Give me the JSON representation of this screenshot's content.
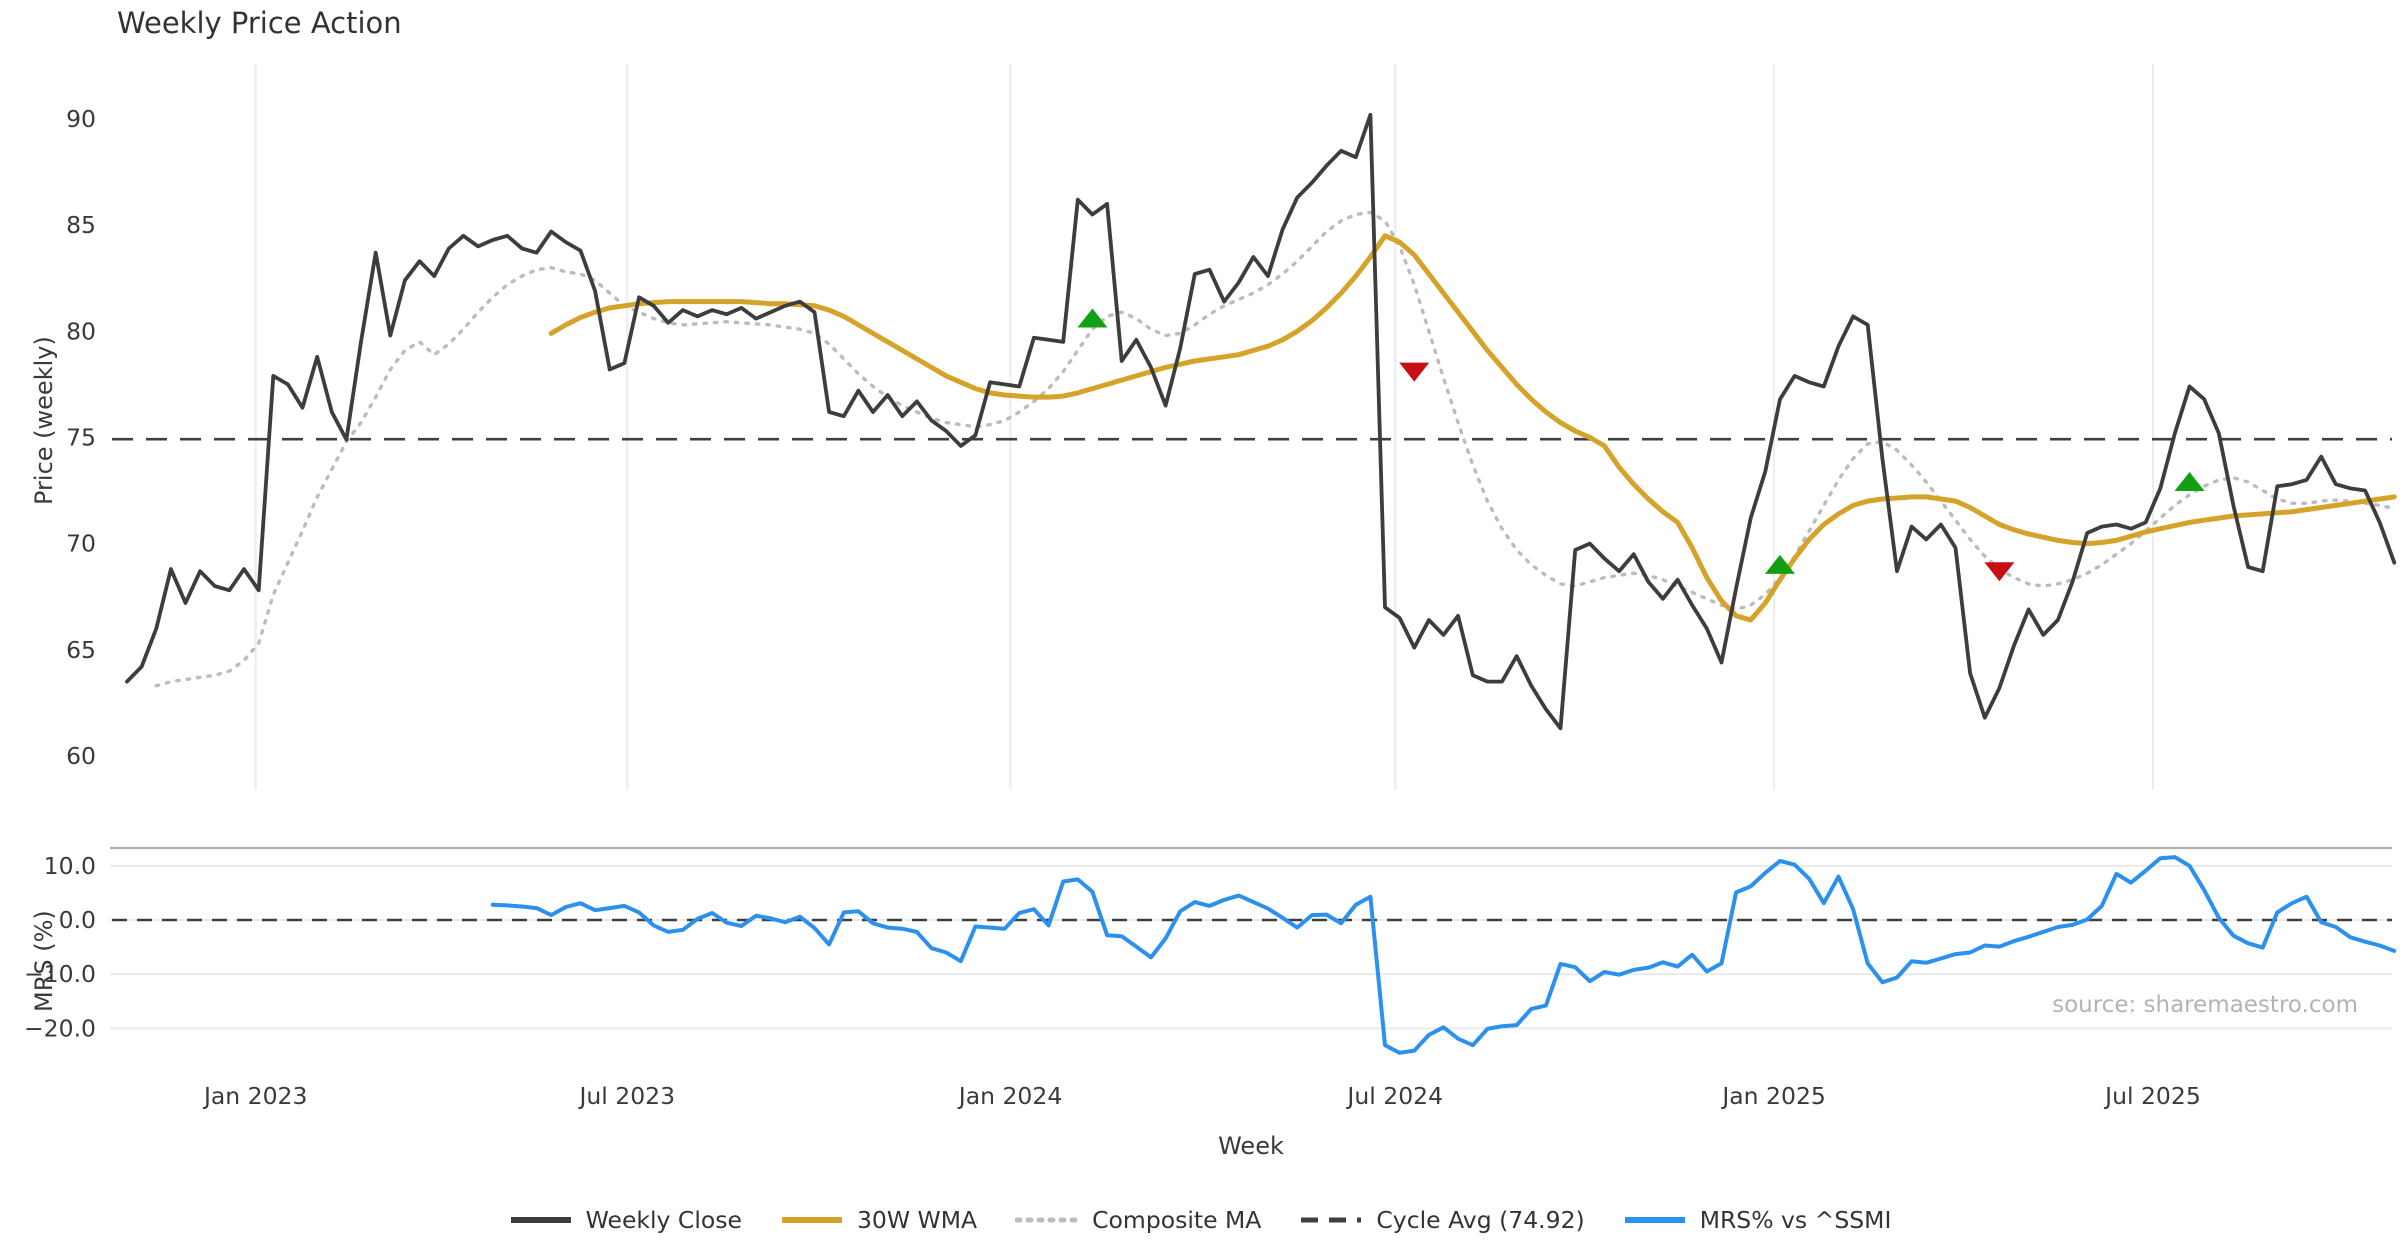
{
  "chart_data": {
    "type": "line",
    "title": "Weekly Price Action",
    "xlabel": "Week",
    "source": "source: sharemaestro.com",
    "x_unit": "week_index",
    "start_week_date": "2022-11-04",
    "weeks_total": 156,
    "x_ticks": [
      {
        "label": "Jan 2023",
        "week": 8.8
      },
      {
        "label": "Jul 2023",
        "week": 34.2
      },
      {
        "label": "Jan 2024",
        "week": 60.4
      },
      {
        "label": "Jul 2024",
        "week": 86.7
      },
      {
        "label": "Jan 2025",
        "week": 112.6
      },
      {
        "label": "Jul 2025",
        "week": 138.5
      }
    ],
    "panels": [
      {
        "name": "price",
        "ylabel": "Price (weekly)",
        "ylim": [
          58.5,
          92.5
        ],
        "y_ticks": [
          {
            "label": "90",
            "value": 90
          },
          {
            "label": "85",
            "value": 85
          },
          {
            "label": "80",
            "value": 80
          },
          {
            "label": "75",
            "value": 75
          },
          {
            "label": "70",
            "value": 70
          },
          {
            "label": "65",
            "value": 65
          },
          {
            "label": "60",
            "value": 60
          }
        ],
        "cycle_avg": 74.92,
        "series": [
          {
            "name": "Weekly Close",
            "color": "#3d3d3d",
            "style": "solid",
            "width": 3.8,
            "start_week": 0,
            "values": [
              63.5,
              64.2,
              66.0,
              68.8,
              67.2,
              68.7,
              68.0,
              67.8,
              68.8,
              67.8,
              77.9,
              77.5,
              76.4,
              78.8,
              76.2,
              74.9,
              79.5,
              83.7,
              79.8,
              82.4,
              83.3,
              82.6,
              83.9,
              84.5,
              84.0,
              84.3,
              84.5,
              83.9,
              83.7,
              84.7,
              84.2,
              83.8,
              81.9,
              78.2,
              78.5,
              81.6,
              81.2,
              80.4,
              81.0,
              80.7,
              81.0,
              80.8,
              81.1,
              80.6,
              80.9,
              81.2,
              81.4,
              80.9,
              76.2,
              76.0,
              77.2,
              76.2,
              77.0,
              76.0,
              76.7,
              75.8,
              75.3,
              74.6,
              75.1,
              77.6,
              77.5,
              77.4,
              79.7,
              79.6,
              79.5,
              86.2,
              85.5,
              86.0,
              78.6,
              79.6,
              78.3,
              76.5,
              79.2,
              82.7,
              82.9,
              81.4,
              82.3,
              83.5,
              82.6,
              84.8,
              86.3,
              87.0,
              87.8,
              88.5,
              88.2,
              90.2,
              67.0,
              66.5,
              65.1,
              66.4,
              65.7,
              66.6,
              63.8,
              63.5,
              63.5,
              64.7,
              63.3,
              62.2,
              61.3,
              69.7,
              70.0,
              69.3,
              68.7,
              69.5,
              68.2,
              67.4,
              68.3,
              67.1,
              66.0,
              64.4,
              67.9,
              71.2,
              73.4,
              76.8,
              77.9,
              77.6,
              77.4,
              79.3,
              80.7,
              80.3,
              74.0,
              68.7,
              70.8,
              70.2,
              70.9,
              69.8,
              63.9,
              61.8,
              63.2,
              65.2,
              66.9,
              65.7,
              66.4,
              68.2,
              70.5,
              70.8,
              70.9,
              70.7,
              71.0,
              72.6,
              75.2,
              77.4,
              76.8,
              75.2,
              71.8,
              68.9,
              68.7,
              72.7,
              72.8,
              73.0,
              74.1,
              72.8,
              72.6,
              72.5,
              71.0,
              69.1
            ]
          },
          {
            "name": "30W WMA",
            "color": "#d5a329",
            "style": "solid",
            "width": 5,
            "start_week": 29,
            "values": [
              79.9,
              80.3,
              80.65,
              80.9,
              81.1,
              81.2,
              81.3,
              81.35,
              81.4,
              81.4,
              81.4,
              81.4,
              81.4,
              81.4,
              81.35,
              81.3,
              81.3,
              81.25,
              81.2,
              81.0,
              80.7,
              80.3,
              79.9,
              79.5,
              79.1,
              78.7,
              78.3,
              77.9,
              77.6,
              77.3,
              77.1,
              77.0,
              76.95,
              76.9,
              76.9,
              76.95,
              77.1,
              77.3,
              77.5,
              77.7,
              77.9,
              78.1,
              78.3,
              78.45,
              78.6,
              78.7,
              78.8,
              78.9,
              79.1,
              79.3,
              79.6,
              80.0,
              80.5,
              81.1,
              81.8,
              82.6,
              83.5,
              84.5,
              84.2,
              83.6,
              82.7,
              81.8,
              80.9,
              80.0,
              79.1,
              78.3,
              77.5,
              76.8,
              76.2,
              75.7,
              75.3,
              75.0,
              74.6,
              73.6,
              72.8,
              72.1,
              71.5,
              71.0,
              69.8,
              68.4,
              67.3,
              66.6,
              66.4,
              67.2,
              68.3,
              69.3,
              70.2,
              70.9,
              71.4,
              71.8,
              72.0,
              72.1,
              72.15,
              72.2,
              72.2,
              72.1,
              72.0,
              71.7,
              71.3,
              70.9,
              70.65,
              70.45,
              70.3,
              70.15,
              70.05,
              70.0,
              70.05,
              70.15,
              70.35,
              70.55,
              70.7,
              70.85,
              71.0,
              71.1,
              71.2,
              71.3,
              71.35,
              71.4,
              71.45,
              71.5,
              71.6,
              71.7,
              71.8,
              71.9,
              72.0,
              72.1,
              72.2
            ]
          },
          {
            "name": "Composite MA",
            "color": "#bcbcbc",
            "style": "dotted",
            "width": 3.4,
            "start_week": 2,
            "values": [
              63.3,
              63.5,
              63.6,
              63.7,
              63.8,
              64.0,
              64.5,
              65.3,
              67.6,
              69.1,
              70.6,
              72.2,
              73.5,
              74.8,
              75.7,
              76.9,
              78.2,
              79.1,
              79.5,
              78.9,
              79.4,
              80.1,
              80.9,
              81.6,
              82.2,
              82.6,
              82.9,
              83.0,
              82.8,
              82.7,
              82.4,
              81.8,
              81.2,
              80.9,
              80.6,
              80.4,
              80.3,
              80.35,
              80.4,
              80.45,
              80.4,
              80.35,
              80.3,
              80.2,
              80.1,
              79.9,
              79.4,
              78.7,
              78.0,
              77.4,
              76.9,
              76.5,
              76.2,
              75.9,
              75.7,
              75.6,
              75.5,
              75.6,
              75.8,
              76.2,
              76.7,
              77.3,
              78.1,
              79.1,
              80.1,
              80.7,
              80.9,
              80.6,
              80.1,
              79.8,
              79.9,
              80.3,
              80.8,
              81.2,
              81.5,
              81.8,
              82.2,
              82.7,
              83.3,
              84.0,
              84.7,
              85.2,
              85.5,
              85.6,
              85.2,
              84.0,
              82.2,
              80.0,
              77.8,
              75.7,
              73.7,
              72.0,
              70.7,
              69.7,
              69.0,
              68.5,
              68.1,
              68.0,
              68.2,
              68.4,
              68.5,
              68.6,
              68.5,
              68.3,
              68.0,
              67.7,
              67.4,
              67.1,
              66.9,
              67.1,
              67.6,
              68.4,
              69.4,
              70.6,
              71.8,
              73.0,
              74.0,
              74.7,
              74.8,
              74.4,
              73.7,
              72.9,
              72.0,
              71.1,
              70.2,
              69.4,
              68.8,
              68.4,
              68.1,
              68.0,
              68.1,
              68.3,
              68.6,
              69.0,
              69.5,
              70.0,
              70.6,
              71.2,
              71.8,
              72.3,
              72.7,
              73.0,
              73.1,
              72.9,
              72.5,
              72.1,
              71.9,
              71.9,
              72.0,
              72.05,
              72.0,
              71.9,
              71.8,
              71.65
            ]
          }
        ],
        "markers": {
          "buy_color": "#12a012",
          "sell_color": "#c81014",
          "buy": [
            {
              "week": 66,
              "value": 80.6
            },
            {
              "week": 113,
              "value": 69.0
            },
            {
              "week": 141,
              "value": 72.9
            }
          ],
          "sell": [
            {
              "week": 88,
              "value": 78.1
            },
            {
              "week": 128,
              "value": 68.7
            }
          ]
        }
      },
      {
        "name": "mrs",
        "ylabel": "MRS (%)",
        "ylim": [
          -26,
          13.5
        ],
        "y_ticks": [
          {
            "label": "10.0",
            "value": 10
          },
          {
            "label": "0.0",
            "value": 0
          },
          {
            "label": "−10.0",
            "value": -10
          },
          {
            "label": "−20.0",
            "value": -20
          }
        ],
        "zero_line_dashed": true,
        "series": [
          {
            "name": "MRS% vs ^SSMI",
            "color": "#2b90ee",
            "style": "solid",
            "width": 4,
            "start_week": 25,
            "values": [
              2.8,
              2.7,
              2.5,
              2.2,
              0.9,
              2.4,
              3.1,
              1.8,
              2.2,
              2.6,
              1.4,
              -1.0,
              -2.2,
              -1.8,
              0.2,
              1.3,
              -0.5,
              -1.1,
              0.8,
              0.3,
              -0.4,
              0.6,
              -1.5,
              -4.5,
              1.4,
              1.6,
              -0.6,
              -1.4,
              -1.6,
              -2.2,
              -5.2,
              -6.0,
              -7.6,
              -1.2,
              -1.4,
              -1.6,
              1.3,
              2.0,
              -1.0,
              7.1,
              7.5,
              5.2,
              -2.8,
              -3.0,
              -4.9,
              -6.9,
              -3.4,
              1.6,
              3.3,
              2.6,
              3.7,
              4.5,
              3.3,
              2.1,
              0.4,
              -1.4,
              0.9,
              1.0,
              -0.6,
              2.8,
              4.3,
              -23.1,
              -24.5,
              -24.1,
              -21.2,
              -19.8,
              -21.9,
              -23.1,
              -20.1,
              -19.6,
              -19.4,
              -16.4,
              -15.8,
              -8.1,
              -8.7,
              -11.3,
              -9.6,
              -10.1,
              -9.2,
              -8.8,
              -7.8,
              -8.6,
              -6.4,
              -9.5,
              -8.0,
              5.1,
              6.2,
              8.7,
              10.9,
              10.2,
              7.6,
              3.1,
              8.0,
              2.0,
              -8.0,
              -11.5,
              -10.6,
              -7.6,
              -7.9,
              -7.1,
              -6.3,
              -6.0,
              -4.7,
              -4.9,
              -3.9,
              -3.1,
              -2.2,
              -1.3,
              -0.9,
              0.1,
              2.6,
              8.5,
              6.9,
              9.1,
              11.4,
              11.6,
              10.0,
              5.5,
              0.4,
              -2.9,
              -4.3,
              -5.1,
              1.4,
              3.1,
              4.3,
              -0.4,
              -1.3,
              -3.2,
              -4.0,
              -4.7,
              -5.7
            ]
          }
        ]
      }
    ],
    "legend": [
      {
        "label": "Weekly Close",
        "color": "#3d3d3d",
        "style": "solid"
      },
      {
        "label": "30W WMA",
        "color": "#d5a329",
        "style": "solid"
      },
      {
        "label": "Composite MA",
        "color": "#bcbcbc",
        "style": "dotted"
      },
      {
        "label": "Cycle Avg (74.92)",
        "color": "#3f3f3f",
        "style": "dashed"
      },
      {
        "label": "MRS% vs ^SSMI",
        "color": "#2b90ee",
        "style": "solid"
      }
    ],
    "grid_color": "#ececeb",
    "panel_spine_color": "#b0b0b0",
    "tick_color": "#3a3a3a"
  }
}
